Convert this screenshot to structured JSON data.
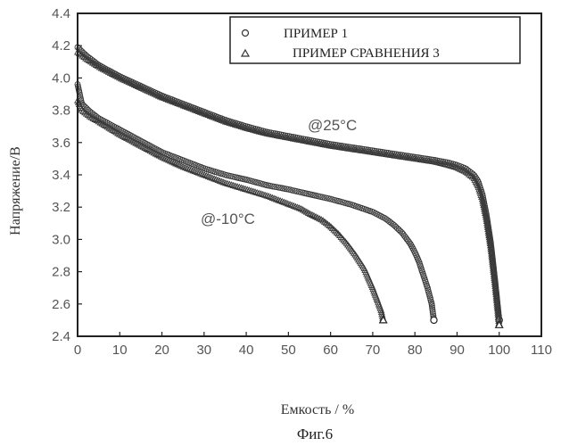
{
  "figure": {
    "caption": "Фиг.6"
  },
  "chart_data": {
    "type": "scatter",
    "xlabel": "Емкость / %",
    "ylabel": "Напряжение/В",
    "xlim": [
      0,
      110
    ],
    "ylim": [
      2.4,
      4.4
    ],
    "x_ticks": [
      0,
      10,
      20,
      30,
      40,
      50,
      60,
      70,
      80,
      90,
      100,
      110
    ],
    "y_ticks": [
      2.4,
      2.6,
      2.8,
      3.0,
      3.2,
      3.4,
      3.6,
      3.8,
      4.0,
      4.2,
      4.4
    ],
    "legend": {
      "position": "top-right"
    },
    "annotations": [
      {
        "text": "@25°C",
        "x": 62,
        "y": 3.73
      },
      {
        "text": "@-10°C",
        "x": 35,
        "y": 3.04
      }
    ],
    "series": [
      {
        "name": "ПРИМЕР 1",
        "marker": "circle",
        "condition": "25°C",
        "x": [
          0,
          2,
          5,
          10,
          15,
          20,
          25,
          30,
          35,
          40,
          45,
          50,
          55,
          60,
          65,
          70,
          75,
          80,
          85,
          88,
          90,
          92,
          94,
          95,
          96,
          97,
          98,
          99,
          100
        ],
        "y": [
          4.19,
          4.14,
          4.08,
          4.01,
          3.95,
          3.89,
          3.84,
          3.79,
          3.74,
          3.7,
          3.665,
          3.64,
          3.615,
          3.59,
          3.57,
          3.55,
          3.53,
          3.51,
          3.49,
          3.475,
          3.46,
          3.44,
          3.4,
          3.36,
          3.28,
          3.15,
          2.98,
          2.75,
          2.5
        ]
      },
      {
        "name": "ПРИМЕР СРАВНЕНИЯ 3",
        "marker": "triangle",
        "condition": "25°C",
        "x": [
          0,
          2,
          5,
          10,
          15,
          20,
          25,
          30,
          35,
          40,
          45,
          50,
          55,
          60,
          65,
          70,
          75,
          80,
          85,
          88,
          90,
          92,
          94,
          95,
          96,
          97,
          98,
          99,
          100
        ],
        "y": [
          4.16,
          4.12,
          4.07,
          4.0,
          3.94,
          3.88,
          3.83,
          3.78,
          3.73,
          3.69,
          3.655,
          3.63,
          3.605,
          3.58,
          3.56,
          3.54,
          3.52,
          3.5,
          3.48,
          3.46,
          3.445,
          3.42,
          3.38,
          3.33,
          3.25,
          3.12,
          2.95,
          2.72,
          2.47
        ]
      },
      {
        "name": "ПРИМЕР 1",
        "marker": "circle",
        "condition": "-10°C",
        "x": [
          0,
          1,
          3,
          5,
          10,
          15,
          20,
          25,
          30,
          35,
          40,
          45,
          50,
          55,
          60,
          65,
          70,
          73,
          75,
          77,
          79,
          80,
          81,
          82,
          83,
          84,
          84.5
        ],
        "y": [
          3.96,
          3.84,
          3.79,
          3.75,
          3.68,
          3.61,
          3.54,
          3.49,
          3.44,
          3.4,
          3.37,
          3.335,
          3.31,
          3.28,
          3.25,
          3.215,
          3.17,
          3.13,
          3.09,
          3.04,
          2.97,
          2.92,
          2.86,
          2.78,
          2.7,
          2.6,
          2.5
        ]
      },
      {
        "name": "ПРИМЕР СРАВНЕНИЯ 3",
        "marker": "triangle",
        "condition": "-10°C",
        "x": [
          0,
          1,
          3,
          5,
          10,
          15,
          20,
          25,
          30,
          35,
          40,
          45,
          50,
          53,
          55,
          58,
          60,
          62,
          64,
          66,
          68,
          69,
          70,
          71,
          72,
          72.5
        ],
        "y": [
          3.86,
          3.8,
          3.76,
          3.73,
          3.65,
          3.58,
          3.51,
          3.45,
          3.4,
          3.35,
          3.31,
          3.27,
          3.22,
          3.19,
          3.16,
          3.12,
          3.08,
          3.03,
          2.97,
          2.9,
          2.82,
          2.76,
          2.7,
          2.63,
          2.56,
          2.5
        ]
      }
    ]
  }
}
